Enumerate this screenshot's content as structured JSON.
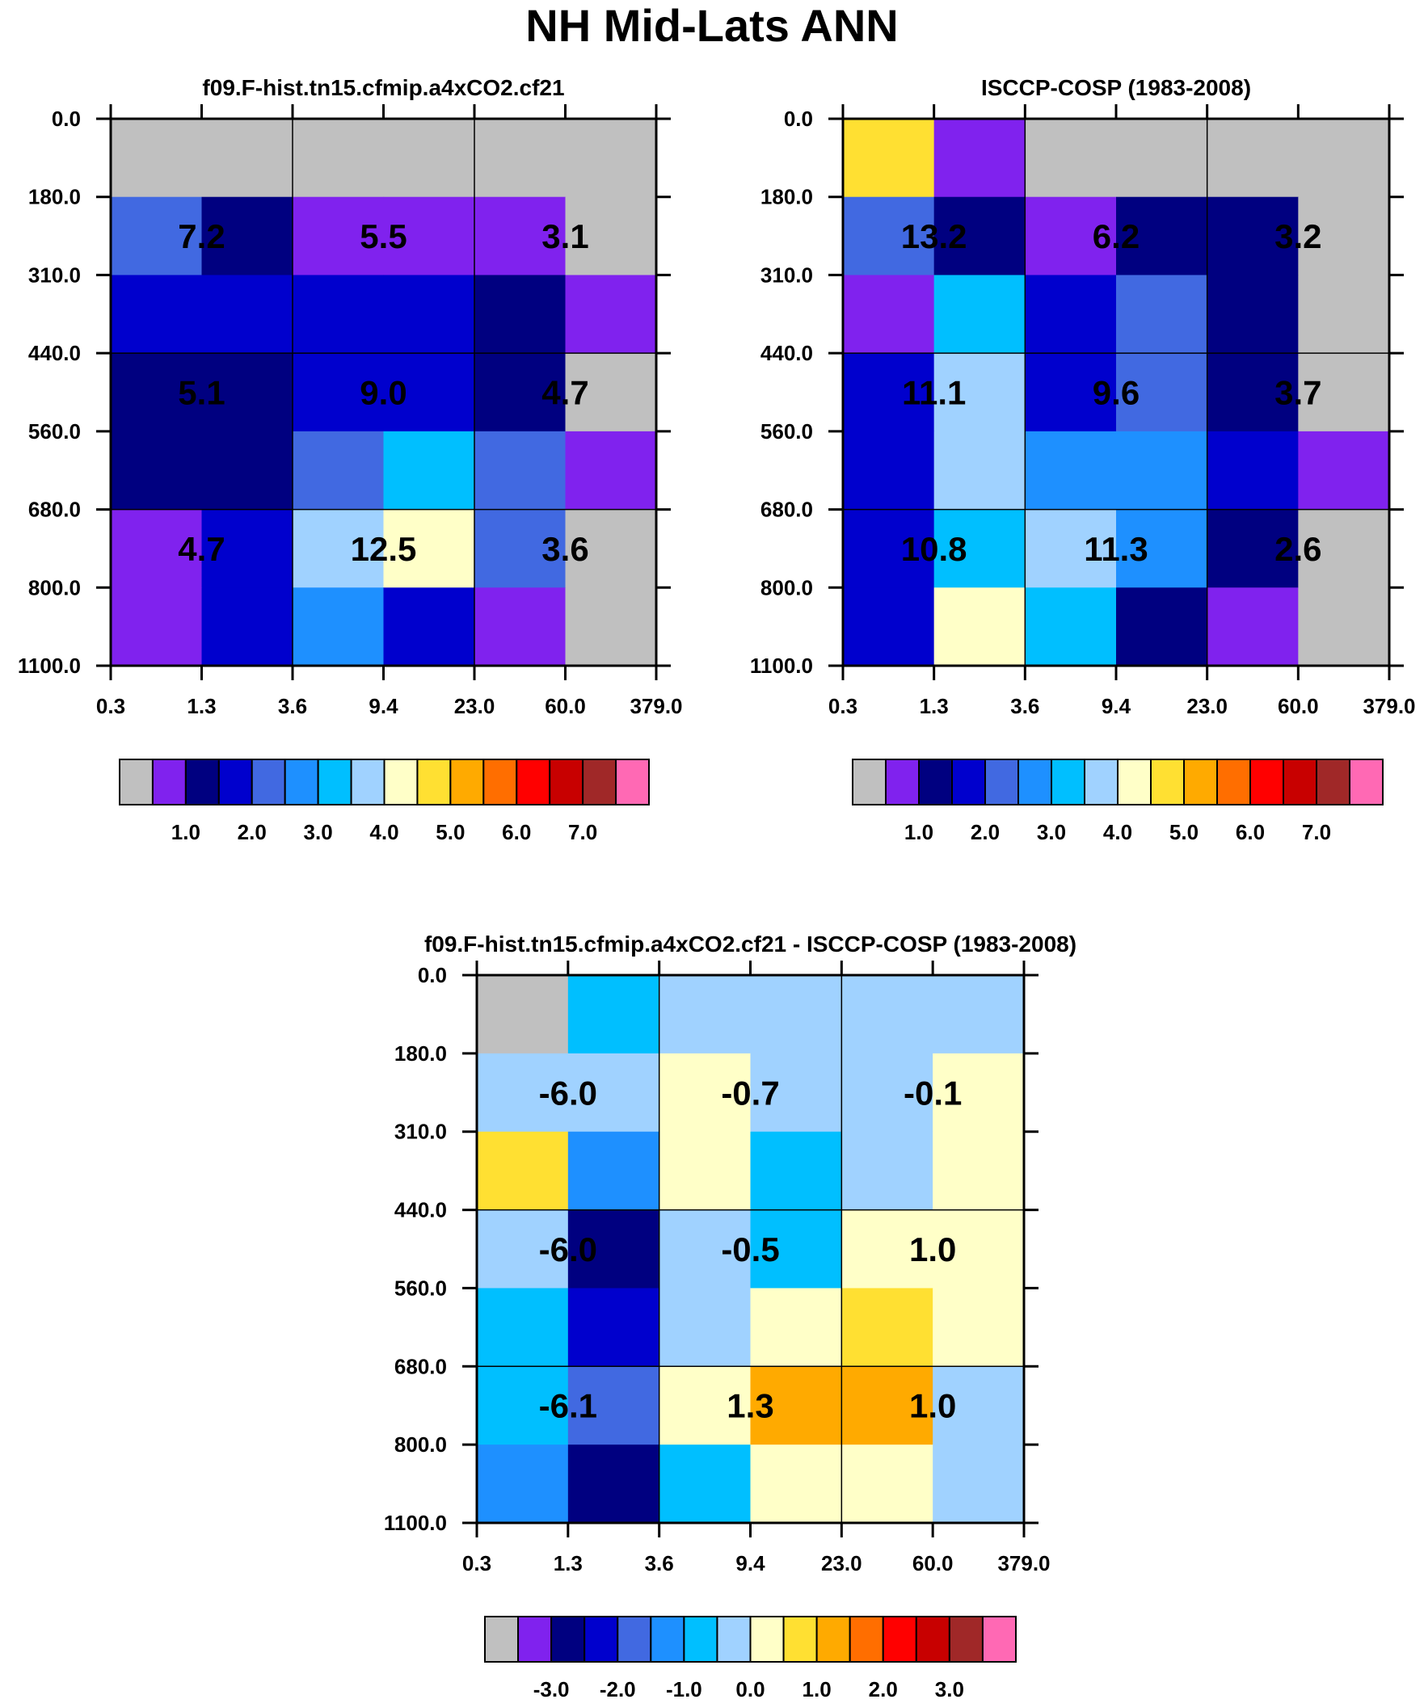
{
  "figure_title": "NH Mid-Lats ANN",
  "axes": {
    "y_ticks": [
      "0.0",
      "180.0",
      "310.0",
      "440.0",
      "560.0",
      "680.0",
      "800.0",
      "1100.0"
    ],
    "x_ticks": [
      "0.3",
      "1.3",
      "3.6",
      "9.4",
      "23.0",
      "60.0",
      "379.0"
    ]
  },
  "palette": [
    "#c0c0c0",
    "#8022ee",
    "#000080",
    "#0000cd",
    "#4169e1",
    "#1e90ff",
    "#00bfff",
    "#a0d2ff",
    "#ffffc8",
    "#ffe032",
    "#ffaa00",
    "#ff6e00",
    "#ff0000",
    "#c80000",
    "#a02828",
    "#ff69b4"
  ],
  "chart_data": [
    {
      "type": "heatmap",
      "title": "f09.F-hist.tn15.cfmip.a4xCO2.cf21",
      "xlabel": "",
      "ylabel": "",
      "grid_cells": [
        [
          0,
          0,
          0,
          0,
          0,
          0
        ],
        [
          4,
          2,
          1,
          1,
          1,
          0
        ],
        [
          3,
          3,
          3,
          3,
          2,
          1
        ],
        [
          2,
          2,
          3,
          3,
          2,
          0
        ],
        [
          2,
          2,
          4,
          6,
          4,
          1
        ],
        [
          1,
          3,
          7,
          8,
          4,
          0
        ],
        [
          1,
          3,
          5,
          3,
          1,
          0
        ]
      ],
      "block_values": [
        [
          "7.2",
          "5.5",
          "3.1"
        ],
        [
          "5.1",
          "9.0",
          "4.7"
        ],
        [
          "4.7",
          "12.5",
          "3.6"
        ]
      ],
      "colorbar": {
        "labels": [
          "1.0",
          "2.0",
          "3.0",
          "4.0",
          "5.0",
          "6.0",
          "7.0"
        ]
      }
    },
    {
      "type": "heatmap",
      "title": "ISCCP-COSP (1983-2008)",
      "xlabel": "",
      "ylabel": "",
      "grid_cells": [
        [
          9,
          1,
          0,
          0,
          0,
          0
        ],
        [
          4,
          2,
          1,
          2,
          2,
          0
        ],
        [
          1,
          6,
          3,
          4,
          2,
          0
        ],
        [
          3,
          7,
          3,
          4,
          2,
          0
        ],
        [
          3,
          7,
          5,
          5,
          3,
          1
        ],
        [
          3,
          6,
          7,
          5,
          2,
          0
        ],
        [
          3,
          8,
          6,
          2,
          1,
          0
        ]
      ],
      "block_values": [
        [
          "13.2",
          "6.2",
          "3.2"
        ],
        [
          "11.1",
          "9.6",
          "3.7"
        ],
        [
          "10.8",
          "11.3",
          "2.6"
        ]
      ],
      "colorbar": {
        "labels": [
          "1.0",
          "2.0",
          "3.0",
          "4.0",
          "5.0",
          "6.0",
          "7.0"
        ]
      }
    },
    {
      "type": "heatmap",
      "title": "f09.F-hist.tn15.cfmip.a4xCO2.cf21 - ISCCP-COSP (1983-2008)",
      "xlabel": "",
      "ylabel": "",
      "grid_cells": [
        [
          0,
          6,
          7,
          7,
          7,
          7
        ],
        [
          7,
          7,
          8,
          7,
          7,
          8
        ],
        [
          9,
          5,
          8,
          6,
          7,
          8
        ],
        [
          7,
          2,
          7,
          6,
          8,
          8
        ],
        [
          6,
          3,
          7,
          8,
          9,
          8
        ],
        [
          6,
          4,
          8,
          10,
          10,
          7
        ],
        [
          5,
          2,
          6,
          8,
          8,
          7
        ]
      ],
      "block_values": [
        [
          "-6.0",
          "-0.7",
          "-0.1"
        ],
        [
          "-6.0",
          "-0.5",
          "1.0"
        ],
        [
          "-6.1",
          "1.3",
          "1.0"
        ]
      ],
      "colorbar": {
        "labels": [
          "-3.0",
          "-2.0",
          "-1.0",
          "0.0",
          "1.0",
          "2.0",
          "3.0"
        ]
      }
    }
  ]
}
